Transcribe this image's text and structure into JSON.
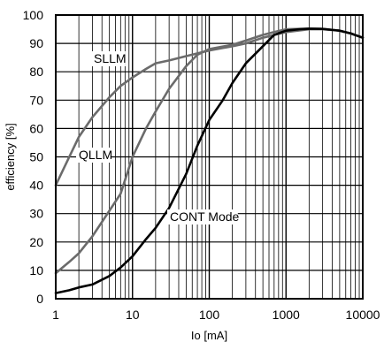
{
  "chart_data": {
    "type": "line",
    "xlabel": "Io [mA]",
    "ylabel": "efficiency [%]",
    "xscale": "log",
    "xlim": [
      1,
      10000
    ],
    "ylim": [
      0,
      100
    ],
    "grid": true,
    "x_ticks": [
      "1",
      "10",
      "100",
      "1000",
      "10000"
    ],
    "y_ticks": [
      "0",
      "10",
      "20",
      "30",
      "40",
      "50",
      "60",
      "70",
      "80",
      "90",
      "100"
    ],
    "series": [
      {
        "name": "SLLM",
        "color": "#6b6b6b",
        "x": [
          1,
          1.5,
          2,
          3,
          5,
          7,
          10,
          15,
          20,
          30,
          50,
          100,
          200,
          300,
          500,
          700,
          1000,
          2000,
          3000,
          5000,
          7000,
          10000
        ],
        "y": [
          40,
          50,
          57,
          64,
          71,
          75,
          78,
          81,
          83,
          84,
          85.5,
          87.5,
          89,
          90,
          92,
          93,
          94,
          95,
          95,
          94.5,
          93.5,
          92
        ]
      },
      {
        "name": "QLLM",
        "color": "#6b6b6b",
        "x": [
          1,
          1.5,
          2,
          3,
          5,
          7,
          10,
          15,
          20,
          30,
          50,
          70,
          100,
          200,
          300,
          500,
          700,
          1000,
          2000,
          3000,
          5000,
          7000,
          10000
        ],
        "y": [
          9,
          13,
          16,
          22,
          31,
          37,
          50,
          60,
          66,
          74,
          82,
          86,
          88,
          89.5,
          91,
          93,
          94,
          95,
          95.2,
          95.1,
          94.5,
          93.5,
          92
        ]
      },
      {
        "name": "CONT Mode",
        "color": "#000000",
        "x": [
          1,
          1.5,
          2,
          3,
          5,
          7,
          10,
          15,
          20,
          30,
          50,
          70,
          100,
          150,
          200,
          300,
          500,
          700,
          1000,
          1500,
          2000,
          3000,
          5000,
          7000,
          10000
        ],
        "y": [
          2,
          3,
          4,
          5,
          8,
          11,
          15,
          21,
          25,
          32,
          44,
          54,
          63,
          70,
          76,
          83,
          89,
          93,
          94.5,
          95,
          95.2,
          95.1,
          94.5,
          93.5,
          92
        ]
      }
    ],
    "annotations": [
      {
        "text": "SLLM",
        "series": "SLLM"
      },
      {
        "text": "QLLM",
        "series": "QLLM"
      },
      {
        "text": "CONT Mode",
        "series": "CONT Mode"
      }
    ]
  }
}
